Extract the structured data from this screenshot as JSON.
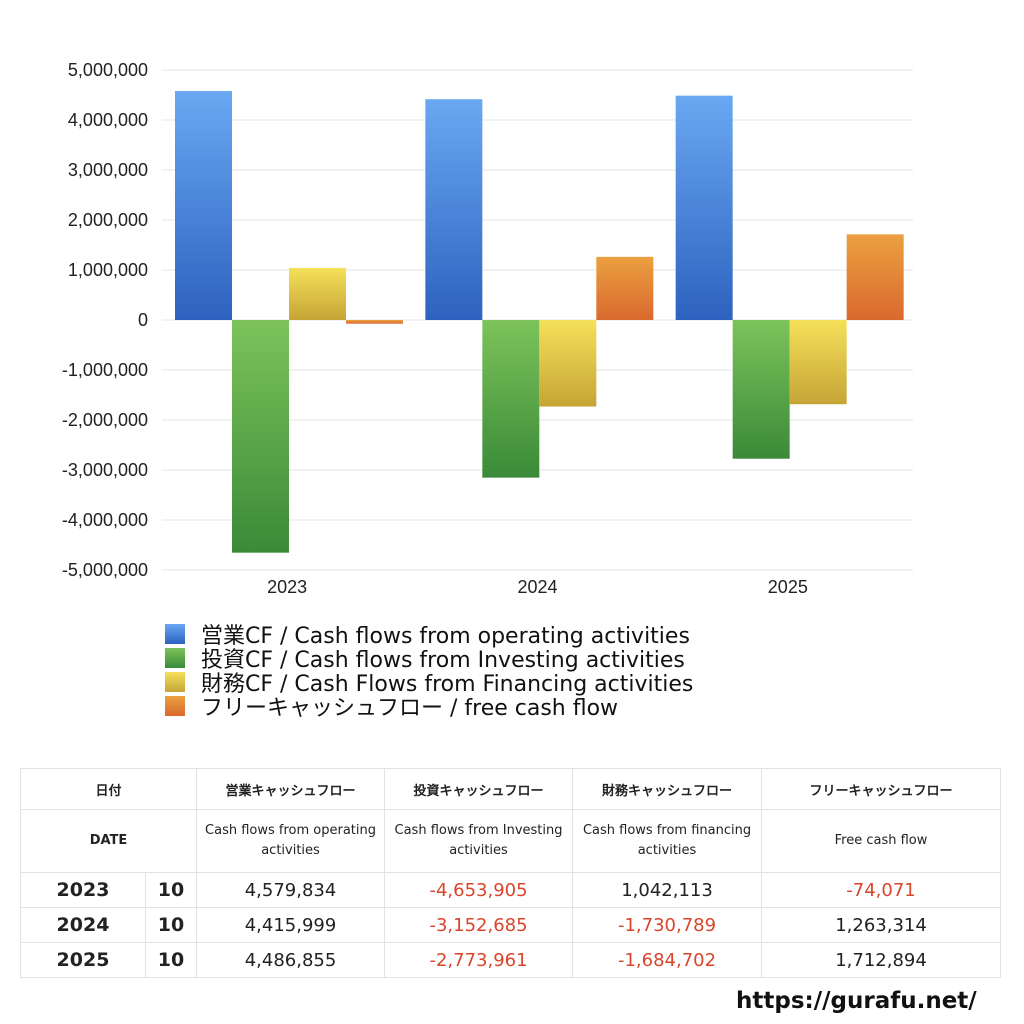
{
  "chart_data": {
    "type": "bar",
    "categories": [
      "2023",
      "2024",
      "2025"
    ],
    "series": [
      {
        "name": "営業CF / Cash flows from operating activities",
        "values": [
          4579834,
          4415999,
          4486855
        ],
        "color_top": "#6aa8f2",
        "color_bottom": "#2d62bf"
      },
      {
        "name": "投資CF / Cash flows from Investing activities",
        "values": [
          -4653905,
          -3152685,
          -2773961
        ],
        "color_top": "#7cc35a",
        "color_bottom": "#3a8a38"
      },
      {
        "name": "財務CF / Cash Flows from Financing activities",
        "values": [
          1042113,
          -1730789,
          -1684702
        ],
        "color_top": "#f5e05a",
        "color_bottom": "#c5a536"
      },
      {
        "name": "フリーキャッシュフロー / free cash flow",
        "values": [
          -74071,
          1263314,
          1712894
        ],
        "color_top": "#eba040",
        "color_bottom": "#d9692e"
      }
    ],
    "ylim": [
      -5000000,
      5000000
    ],
    "yticks": [
      "5,000,000",
      "4,000,000",
      "3,000,000",
      "2,000,000",
      "1,000,000",
      "0",
      "-1,000,000",
      "-2,000,000",
      "-3,000,000",
      "-4,000,000",
      "-5,000,000"
    ],
    "grid": true,
    "legend_position": "bottom"
  },
  "table": {
    "header_jp": {
      "date": "日付",
      "operating": "営業キャッシュフロー",
      "investing": "投資キャッシュフロー",
      "financing": "財務キャッシュフロー",
      "free": "フリーキャッシュフロー"
    },
    "header_en": {
      "date": "DATE",
      "operating": "Cash flows from operating activities",
      "investing": "Cash flows from Investing activities",
      "financing": "Cash flows from financing activities",
      "free": "Free cash flow"
    },
    "rows": [
      {
        "year": "2023",
        "month": "10",
        "operating": "4,579,834",
        "investing": "-4,653,905",
        "financing": "1,042,113",
        "free": "-74,071"
      },
      {
        "year": "2024",
        "month": "10",
        "operating": "4,415,999",
        "investing": "-3,152,685",
        "financing": "-1,730,789",
        "free": "1,263,314"
      },
      {
        "year": "2025",
        "month": "10",
        "operating": "4,486,855",
        "investing": "-2,773,961",
        "financing": "-1,684,702",
        "free": "1,712,894"
      }
    ],
    "negative_color": "#d9452b"
  },
  "footer": {
    "url": "https://gurafu.net/"
  }
}
